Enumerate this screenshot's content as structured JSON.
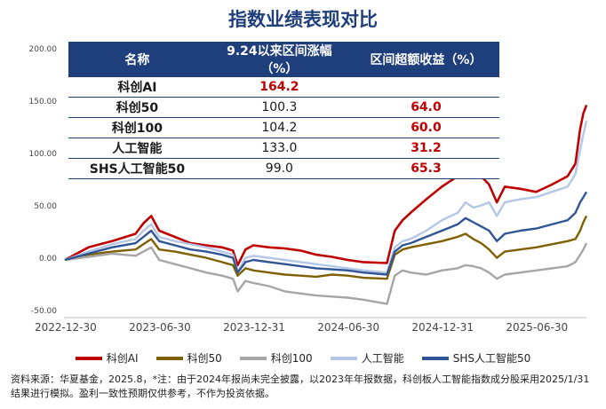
{
  "chart_data": {
    "type": "line",
    "title": "指数业绩表现对比",
    "x_ticks": [
      "2022-12-30",
      "2023-06-30",
      "2023-12-31",
      "2024-06-30",
      "2024-12-31",
      "2025-06-30"
    ],
    "ylim": [
      -50,
      200
    ],
    "y_ticks": [
      200,
      150,
      100,
      50,
      0,
      -50
    ],
    "y_tick_labels": [
      "200.00",
      "150.00",
      "100.00",
      "50.00",
      "0.00",
      "-50.00"
    ],
    "grid": false,
    "legend_position": "bottom",
    "time_range": [
      "2022-12-30",
      "2025-09-24"
    ],
    "series": [
      {
        "name": "科创AI",
        "color": "#c00000",
        "values": [
          [
            0,
            0
          ],
          [
            1.5,
            12
          ],
          [
            3,
            18
          ],
          [
            4.5,
            25
          ],
          [
            5,
            35
          ],
          [
            5.5,
            42
          ],
          [
            6,
            28
          ],
          [
            7,
            22
          ],
          [
            8,
            16
          ],
          [
            9,
            14
          ],
          [
            10,
            12
          ],
          [
            10.7,
            9
          ],
          [
            11,
            -5
          ],
          [
            11.5,
            10
          ],
          [
            12,
            14
          ],
          [
            13,
            12
          ],
          [
            14,
            11
          ],
          [
            15,
            9
          ],
          [
            16,
            5
          ],
          [
            17,
            3
          ],
          [
            18,
            0
          ],
          [
            19,
            -2
          ],
          [
            20.5,
            -3
          ],
          [
            21,
            28
          ],
          [
            21.5,
            38
          ],
          [
            22,
            45
          ],
          [
            23,
            58
          ],
          [
            24,
            70
          ],
          [
            25,
            80
          ],
          [
            25.5,
            92
          ],
          [
            26,
            84
          ],
          [
            26.5,
            80
          ],
          [
            27,
            72
          ],
          [
            27.5,
            55
          ],
          [
            28,
            70
          ],
          [
            29,
            68
          ],
          [
            30,
            65
          ],
          [
            31,
            72
          ],
          [
            32,
            80
          ],
          [
            32.5,
            92
          ],
          [
            32.8,
            125
          ],
          [
            33,
            140
          ],
          [
            33.2,
            148
          ]
        ]
      },
      {
        "name": "科创50",
        "color": "#7f6000",
        "values": [
          [
            0,
            0
          ],
          [
            1.5,
            5
          ],
          [
            3,
            8
          ],
          [
            4.5,
            10
          ],
          [
            5,
            15
          ],
          [
            5.5,
            20
          ],
          [
            6,
            10
          ],
          [
            7,
            8
          ],
          [
            8,
            5
          ],
          [
            9,
            2
          ],
          [
            10,
            -2
          ],
          [
            10.7,
            -5
          ],
          [
            11,
            -15
          ],
          [
            11.5,
            -8
          ],
          [
            12,
            -10
          ],
          [
            13,
            -12
          ],
          [
            14,
            -14
          ],
          [
            15,
            -15
          ],
          [
            16,
            -16
          ],
          [
            17,
            -14
          ],
          [
            18,
            -15
          ],
          [
            19,
            -17
          ],
          [
            20.5,
            -18
          ],
          [
            21,
            5
          ],
          [
            21.5,
            10
          ],
          [
            22,
            12
          ],
          [
            23,
            15
          ],
          [
            24,
            18
          ],
          [
            25,
            22
          ],
          [
            25.5,
            25
          ],
          [
            26,
            20
          ],
          [
            26.5,
            16
          ],
          [
            27,
            10
          ],
          [
            27.5,
            2
          ],
          [
            28,
            8
          ],
          [
            29,
            10
          ],
          [
            30,
            12
          ],
          [
            31,
            15
          ],
          [
            32,
            18
          ],
          [
            32.5,
            20
          ],
          [
            32.8,
            28
          ],
          [
            33,
            36
          ],
          [
            33.2,
            42
          ]
        ]
      },
      {
        "name": "科创100",
        "color": "#a6a6a6",
        "values": [
          [
            0,
            0
          ],
          [
            1.5,
            3
          ],
          [
            3,
            6
          ],
          [
            4.5,
            4
          ],
          [
            5,
            8
          ],
          [
            5.5,
            12
          ],
          [
            6,
            0
          ],
          [
            7,
            -4
          ],
          [
            8,
            -8
          ],
          [
            9,
            -12
          ],
          [
            10,
            -15
          ],
          [
            10.7,
            -18
          ],
          [
            11,
            -30
          ],
          [
            11.5,
            -20
          ],
          [
            12,
            -22
          ],
          [
            13,
            -25
          ],
          [
            14,
            -30
          ],
          [
            15,
            -32
          ],
          [
            16,
            -34
          ],
          [
            17,
            -35
          ],
          [
            18,
            -36
          ],
          [
            19,
            -38
          ],
          [
            20.5,
            -42
          ],
          [
            21,
            -15
          ],
          [
            21.5,
            -10
          ],
          [
            22,
            -12
          ],
          [
            23,
            -14
          ],
          [
            24,
            -10
          ],
          [
            25,
            -8
          ],
          [
            25.5,
            -5
          ],
          [
            26,
            -6
          ],
          [
            26.5,
            -8
          ],
          [
            27,
            -12
          ],
          [
            27.5,
            -18
          ],
          [
            28,
            -14
          ],
          [
            29,
            -12
          ],
          [
            30,
            -10
          ],
          [
            31,
            -8
          ],
          [
            32,
            -6
          ],
          [
            32.5,
            -2
          ],
          [
            32.8,
            5
          ],
          [
            33,
            10
          ],
          [
            33.2,
            16
          ]
        ]
      },
      {
        "name": "人工智能",
        "color": "#b4c7e7",
        "values": [
          [
            0,
            0
          ],
          [
            1.5,
            8
          ],
          [
            3,
            15
          ],
          [
            4.5,
            20
          ],
          [
            5,
            28
          ],
          [
            5.5,
            34
          ],
          [
            6,
            22
          ],
          [
            7,
            18
          ],
          [
            8,
            15
          ],
          [
            9,
            12
          ],
          [
            10,
            8
          ],
          [
            10.7,
            5
          ],
          [
            11,
            -12
          ],
          [
            11.5,
            2
          ],
          [
            12,
            4
          ],
          [
            13,
            2
          ],
          [
            14,
            0
          ],
          [
            15,
            -2
          ],
          [
            16,
            -4
          ],
          [
            17,
            -6
          ],
          [
            18,
            -8
          ],
          [
            19,
            -10
          ],
          [
            20.5,
            -12
          ],
          [
            21,
            12
          ],
          [
            21.5,
            18
          ],
          [
            22,
            20
          ],
          [
            23,
            28
          ],
          [
            24,
            38
          ],
          [
            25,
            45
          ],
          [
            25.5,
            55
          ],
          [
            26,
            50
          ],
          [
            26.5,
            52
          ],
          [
            27,
            55
          ],
          [
            27.5,
            42
          ],
          [
            28,
            55
          ],
          [
            29,
            58
          ],
          [
            30,
            60
          ],
          [
            31,
            65
          ],
          [
            32,
            70
          ],
          [
            32.5,
            82
          ],
          [
            32.8,
            105
          ],
          [
            33,
            120
          ],
          [
            33.2,
            133
          ]
        ]
      },
      {
        "name": "SHS人工智能50",
        "color": "#2f5597",
        "values": [
          [
            0,
            0
          ],
          [
            1.5,
            6
          ],
          [
            3,
            12
          ],
          [
            4.5,
            16
          ],
          [
            5,
            22
          ],
          [
            5.5,
            28
          ],
          [
            6,
            18
          ],
          [
            7,
            14
          ],
          [
            8,
            10
          ],
          [
            9,
            8
          ],
          [
            10,
            5
          ],
          [
            10.7,
            2
          ],
          [
            11,
            -12
          ],
          [
            11.5,
            -2
          ],
          [
            12,
            0
          ],
          [
            13,
            -2
          ],
          [
            14,
            -4
          ],
          [
            15,
            -6
          ],
          [
            16,
            -8
          ],
          [
            17,
            -9
          ],
          [
            18,
            -10
          ],
          [
            19,
            -12
          ],
          [
            20.5,
            -14
          ],
          [
            21,
            8
          ],
          [
            21.5,
            14
          ],
          [
            22,
            16
          ],
          [
            23,
            22
          ],
          [
            24,
            28
          ],
          [
            25,
            34
          ],
          [
            25.5,
            40
          ],
          [
            26,
            36
          ],
          [
            26.5,
            32
          ],
          [
            27,
            28
          ],
          [
            27.5,
            18
          ],
          [
            28,
            25
          ],
          [
            29,
            28
          ],
          [
            30,
            30
          ],
          [
            31,
            34
          ],
          [
            32,
            38
          ],
          [
            32.5,
            45
          ],
          [
            32.8,
            55
          ],
          [
            33,
            60
          ],
          [
            33.2,
            65
          ]
        ]
      }
    ],
    "table": {
      "headers": [
        "名称",
        "9.24以来区间涨幅（%）",
        "区间超额收益（%）"
      ],
      "rows": [
        {
          "name": "科创AI",
          "gain": "164.2",
          "excess": ""
        },
        {
          "name": "科创50",
          "gain": "100.3",
          "excess": "64.0"
        },
        {
          "name": "科创100",
          "gain": "104.2",
          "excess": "60.0"
        },
        {
          "name": "人工智能",
          "gain": "133.0",
          "excess": "31.2"
        },
        {
          "name": "SHS人工智能50",
          "gain": "99.0",
          "excess": "65.3"
        }
      ]
    }
  },
  "note": "资料来源：华夏基金，2025.8，*注：由于2024年报尚未完全披露，以2023年年报数据，科创板人工智能指数成分股采用2025/1/31 结果进行模拟。盈利一致性预期仅供参考，不作为投资依据。"
}
